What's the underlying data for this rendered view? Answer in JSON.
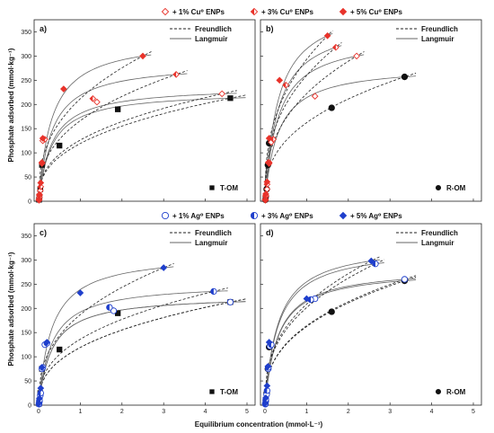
{
  "figure": {
    "y_label": "Phosphate adsorbed (mmol·kg⁻¹)",
    "x_label": "Equilibrium concentration (mmol·L⁻¹)",
    "model_legend": [
      "Freundlich",
      "Langmuir"
    ],
    "top_legend_cu": [
      {
        "marker": "open",
        "color": "#e8332b",
        "text": "+ 1% Cu⁰ ENPs"
      },
      {
        "marker": "half",
        "color": "#e8332b",
        "text": "+ 3% Cu⁰ ENPs"
      },
      {
        "marker": "filled",
        "color": "#e8332b",
        "text": "+ 5% Cu⁰ ENPs"
      }
    ],
    "top_legend_ag": [
      {
        "marker": "open",
        "color": "#1f3fcc",
        "text": "+ 1% Ag⁰ ENPs"
      },
      {
        "marker": "half",
        "color": "#1f3fcc",
        "text": "+ 3% Ag⁰ ENPs"
      },
      {
        "marker": "filled",
        "color": "#1f3fcc",
        "text": "+ 5% Ag⁰ ENPs"
      }
    ]
  },
  "chart_data": [
    {
      "panel": "a)",
      "sample": "T-OM",
      "sample_marker": "square",
      "type": "scatter",
      "xlim": [
        0,
        5
      ],
      "ylim": [
        0,
        375
      ],
      "xticks": [
        "0",
        "1",
        "2",
        "3",
        "4",
        "5"
      ],
      "yticks": [
        "0",
        "50",
        "100",
        "150",
        "200",
        "250",
        "300",
        "350"
      ],
      "grid": false,
      "legend_position": "top-right",
      "series": [
        {
          "color": "#111111",
          "marker": "square-filled",
          "points": [
            [
              0.01,
              3
            ],
            [
              0.02,
              10
            ],
            [
              0.04,
              25
            ],
            [
              0.08,
              75
            ],
            [
              0.5,
              115
            ],
            [
              1.9,
              190
            ],
            [
              4.6,
              213
            ]
          ]
        },
        {
          "color": "#e8332b",
          "marker": "diamond-open",
          "points": [
            [
              0.01,
              2
            ],
            [
              0.02,
              8
            ],
            [
              0.04,
              22
            ],
            [
              0.08,
              78
            ],
            [
              0.1,
              125
            ],
            [
              1.4,
              205
            ],
            [
              4.4,
              222
            ]
          ]
        },
        {
          "color": "#e8332b",
          "marker": "diamond-half",
          "points": [
            [
              0.01,
              3
            ],
            [
              0.02,
              12
            ],
            [
              0.05,
              30
            ],
            [
              0.08,
              80
            ],
            [
              0.15,
              128
            ],
            [
              1.3,
              212
            ],
            [
              3.3,
              262
            ]
          ]
        },
        {
          "color": "#e8332b",
          "marker": "diamond-filled",
          "points": [
            [
              0.01,
              4
            ],
            [
              0.02,
              14
            ],
            [
              0.05,
              38
            ],
            [
              0.08,
              80
            ],
            [
              0.1,
              130
            ],
            [
              0.6,
              232
            ],
            [
              2.5,
              300
            ]
          ]
        }
      ]
    },
    {
      "panel": "b)",
      "sample": "R-OM",
      "sample_marker": "circle",
      "type": "scatter",
      "xlim": [
        0,
        5
      ],
      "ylim": [
        0,
        375
      ],
      "xticks": [
        "0",
        "1",
        "2",
        "3",
        "4",
        "5"
      ],
      "yticks": [
        "0",
        "50",
        "100",
        "150",
        "200",
        "250",
        "300",
        "350"
      ],
      "grid": false,
      "legend_position": "top-right",
      "series": [
        {
          "color": "#111111",
          "marker": "circle-filled",
          "points": [
            [
              0.01,
              3
            ],
            [
              0.02,
              10
            ],
            [
              0.04,
              25
            ],
            [
              0.07,
              75
            ],
            [
              0.1,
              120
            ],
            [
              1.6,
              193
            ],
            [
              3.35,
              257
            ]
          ]
        },
        {
          "color": "#e8332b",
          "marker": "diamond-open",
          "points": [
            [
              0.01,
              2
            ],
            [
              0.02,
              10
            ],
            [
              0.05,
              25
            ],
            [
              0.1,
              78
            ],
            [
              0.15,
              122
            ],
            [
              1.2,
              217
            ],
            [
              2.2,
              300
            ]
          ]
        },
        {
          "color": "#e8332b",
          "marker": "diamond-half",
          "points": [
            [
              0.01,
              3
            ],
            [
              0.02,
              12
            ],
            [
              0.05,
              35
            ],
            [
              0.1,
              80
            ],
            [
              0.2,
              128
            ],
            [
              0.5,
              240
            ],
            [
              1.7,
              318
            ]
          ]
        },
        {
          "color": "#e8332b",
          "marker": "diamond-filled",
          "points": [
            [
              0.01,
              4
            ],
            [
              0.02,
              15
            ],
            [
              0.05,
              40
            ],
            [
              0.08,
              80
            ],
            [
              0.1,
              130
            ],
            [
              0.35,
              250
            ],
            [
              1.5,
              342
            ]
          ]
        }
      ]
    },
    {
      "panel": "c)",
      "sample": "T-OM",
      "sample_marker": "square",
      "type": "scatter",
      "xlim": [
        0,
        5
      ],
      "ylim": [
        0,
        375
      ],
      "xticks": [
        "0",
        "1",
        "2",
        "3",
        "4",
        "5"
      ],
      "yticks": [
        "0",
        "50",
        "100",
        "150",
        "200",
        "250",
        "300",
        "350"
      ],
      "grid": false,
      "legend_position": "top-right",
      "series": [
        {
          "color": "#111111",
          "marker": "square-filled",
          "points": [
            [
              0.01,
              3
            ],
            [
              0.02,
              10
            ],
            [
              0.04,
              25
            ],
            [
              0.08,
              75
            ],
            [
              0.5,
              115
            ],
            [
              1.9,
              190
            ],
            [
              4.6,
              213
            ]
          ]
        },
        {
          "color": "#1f3fcc",
          "marker": "circle-open",
          "points": [
            [
              0.01,
              2
            ],
            [
              0.02,
              8
            ],
            [
              0.04,
              20
            ],
            [
              0.08,
              75
            ],
            [
              0.15,
              125
            ],
            [
              1.8,
              195
            ],
            [
              4.6,
              213
            ]
          ]
        },
        {
          "color": "#1f3fcc",
          "marker": "circle-half",
          "points": [
            [
              0.01,
              3
            ],
            [
              0.02,
              10
            ],
            [
              0.05,
              25
            ],
            [
              0.1,
              78
            ],
            [
              0.2,
              128
            ],
            [
              1.7,
              202
            ],
            [
              4.2,
              235
            ]
          ]
        },
        {
          "color": "#1f3fcc",
          "marker": "diamond-filled",
          "points": [
            [
              0.01,
              4
            ],
            [
              0.02,
              14
            ],
            [
              0.05,
              35
            ],
            [
              0.08,
              78
            ],
            [
              0.2,
              130
            ],
            [
              1.0,
              232
            ],
            [
              3.0,
              284
            ]
          ]
        }
      ]
    },
    {
      "panel": "d)",
      "sample": "R-OM",
      "sample_marker": "circle",
      "type": "scatter",
      "xlim": [
        0,
        5
      ],
      "ylim": [
        0,
        375
      ],
      "xticks": [
        "0",
        "1",
        "2",
        "3",
        "4",
        "5"
      ],
      "yticks": [
        "0",
        "50",
        "100",
        "150",
        "200",
        "250",
        "300",
        "350"
      ],
      "grid": false,
      "legend_position": "top-right",
      "series": [
        {
          "color": "#111111",
          "marker": "circle-filled",
          "points": [
            [
              0.01,
              3
            ],
            [
              0.02,
              10
            ],
            [
              0.04,
              25
            ],
            [
              0.07,
              75
            ],
            [
              0.1,
              120
            ],
            [
              1.6,
              193
            ],
            [
              3.35,
              257
            ]
          ]
        },
        {
          "color": "#1f3fcc",
          "marker": "circle-open",
          "points": [
            [
              0.01,
              2
            ],
            [
              0.02,
              8
            ],
            [
              0.04,
              22
            ],
            [
              0.08,
              75
            ],
            [
              0.12,
              122
            ],
            [
              1.2,
              220
            ],
            [
              3.35,
              260
            ]
          ]
        },
        {
          "color": "#1f3fcc",
          "marker": "circle-half",
          "points": [
            [
              0.01,
              3
            ],
            [
              0.02,
              12
            ],
            [
              0.05,
              30
            ],
            [
              0.08,
              78
            ],
            [
              0.15,
              125
            ],
            [
              1.1,
              218
            ],
            [
              2.65,
              292
            ]
          ]
        },
        {
          "color": "#1f3fcc",
          "marker": "diamond-filled",
          "points": [
            [
              0.01,
              4
            ],
            [
              0.02,
              15
            ],
            [
              0.05,
              40
            ],
            [
              0.07,
              80
            ],
            [
              0.1,
              130
            ],
            [
              1.0,
              220
            ],
            [
              2.55,
              298
            ]
          ]
        }
      ]
    }
  ]
}
